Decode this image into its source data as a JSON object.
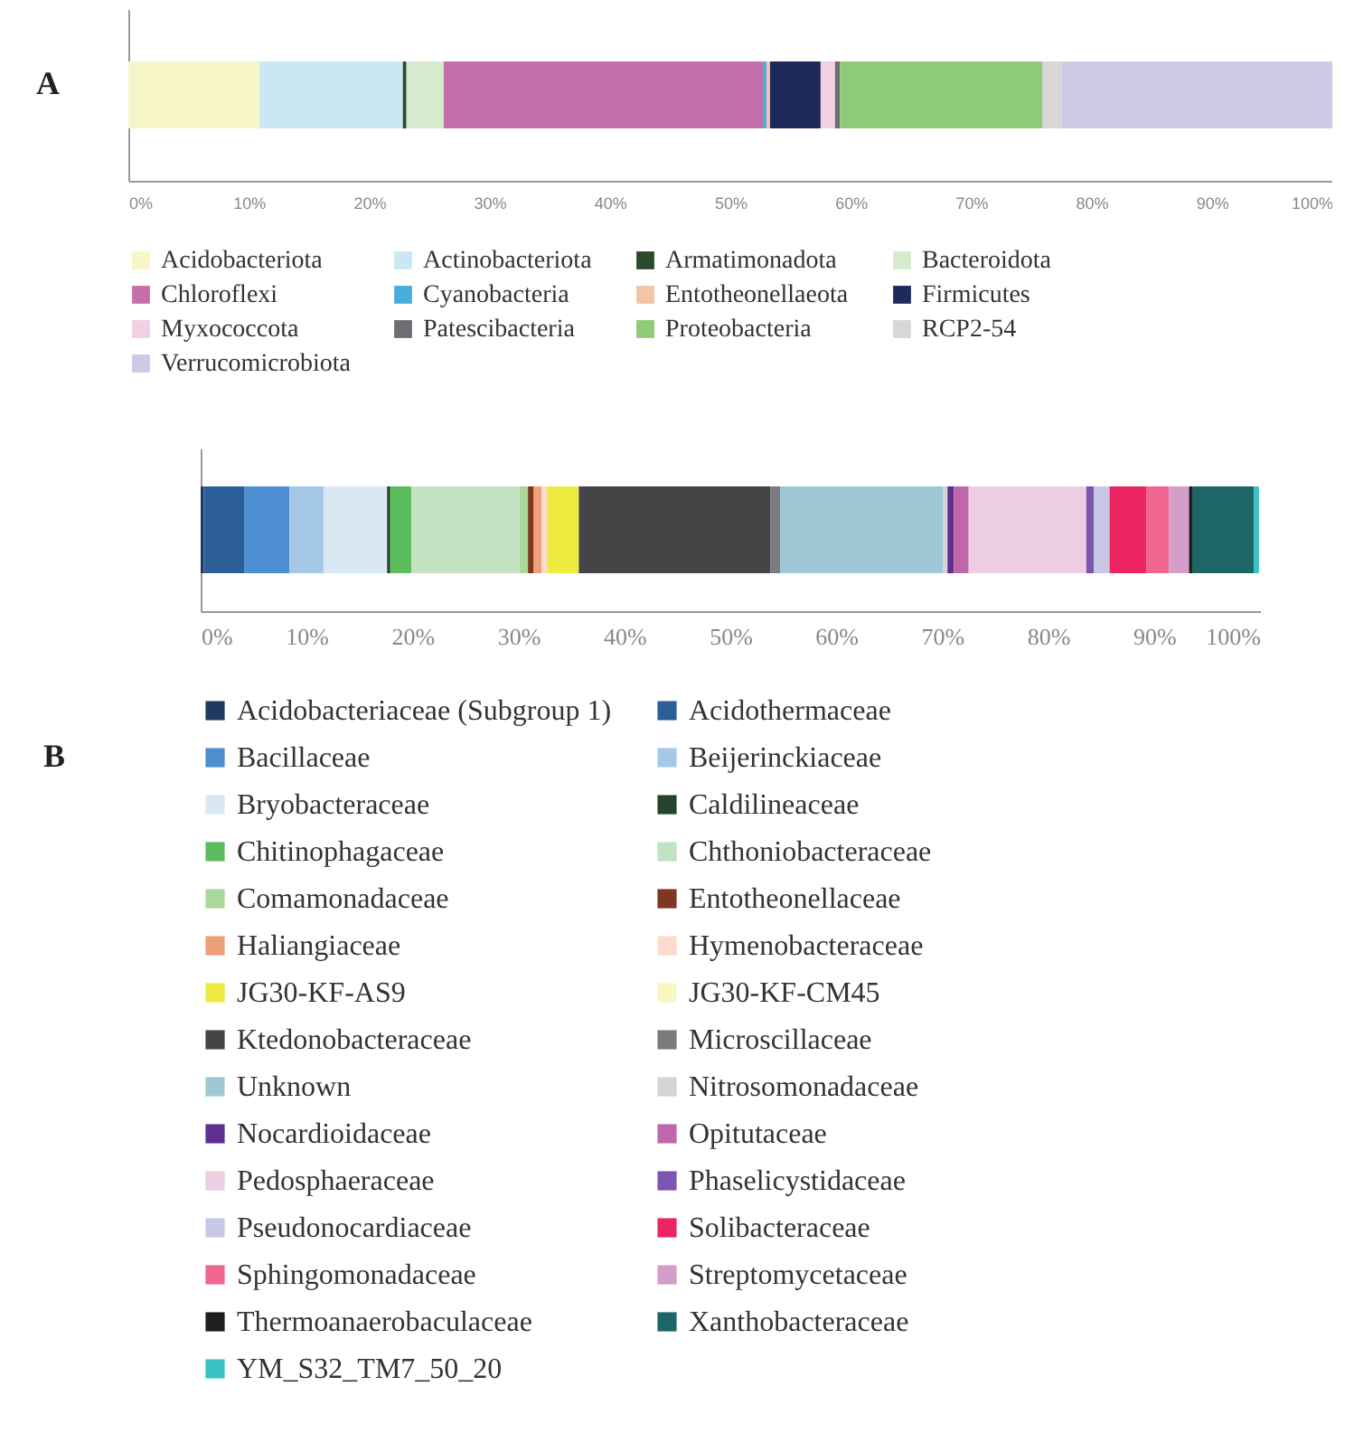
{
  "chart_data": [
    {
      "type": "bar",
      "orientation": "horizontal",
      "stacked": true,
      "categories": [
        null
      ],
      "xlim": [
        0,
        100
      ],
      "xticks": [
        {
          "value": 0,
          "label": "0%"
        },
        {
          "value": 10,
          "label": "10%"
        },
        {
          "value": 20,
          "label": "20%"
        },
        {
          "value": 30,
          "label": "30%"
        },
        {
          "value": 40,
          "label": "40%"
        },
        {
          "value": 50,
          "label": "50%"
        },
        {
          "value": 60,
          "label": "60%"
        },
        {
          "value": 70,
          "label": "70%"
        },
        {
          "value": 80,
          "label": "80%"
        },
        {
          "value": 90,
          "label": "90%"
        },
        {
          "value": 100,
          "label": "100%"
        }
      ],
      "tick_labels": "x",
      "grid": false,
      "legend": "bottom",
      "annotations": [
        "A"
      ],
      "series": [
        {
          "name": "Acidobacteriota",
          "color": "#f7f6c9",
          "values": [
            10.9
          ]
        },
        {
          "name": "Actinobacteriota",
          "color": "#c9e8f4",
          "values": [
            11.9
          ]
        },
        {
          "name": "Armatimonadota",
          "color": "#2b4a2b",
          "values": [
            0.3
          ]
        },
        {
          "name": "Bacteroidota",
          "color": "#d6ebcd",
          "values": [
            3.1
          ]
        },
        {
          "name": "Chloroflexi",
          "color": "#c46faa",
          "values": [
            26.5
          ]
        },
        {
          "name": "Cyanobacteria",
          "color": "#4aaedc",
          "values": [
            0.3
          ]
        },
        {
          "name": "Entotheonellaeota",
          "color": "#f5c3a6",
          "values": [
            0.3
          ]
        },
        {
          "name": "Firmicutes",
          "color": "#1f2a5c",
          "values": [
            4.2
          ]
        },
        {
          "name": "Myxococcota",
          "color": "#f2d0e4",
          "values": [
            1.2
          ]
        },
        {
          "name": "Patescibacteria",
          "color": "#6e6e72",
          "values": [
            0.4
          ]
        },
        {
          "name": "Proteobacteria",
          "color": "#8fca78",
          "values": [
            16.8
          ]
        },
        {
          "name": "RCP2-54",
          "color": "#d7d7d7",
          "values": [
            1.6
          ]
        },
        {
          "name": "Verrucomicrobiota",
          "color": "#cccae4",
          "values": [
            22.5
          ]
        }
      ]
    },
    {
      "type": "bar",
      "orientation": "horizontal",
      "stacked": true,
      "categories": [
        null
      ],
      "xlim": [
        0,
        100
      ],
      "xticks": [
        {
          "value": 0,
          "label": "0%"
        },
        {
          "value": 10,
          "label": "10%"
        },
        {
          "value": 20,
          "label": "20%"
        },
        {
          "value": 30,
          "label": "30%"
        },
        {
          "value": 40,
          "label": "40%"
        },
        {
          "value": 50,
          "label": "50%"
        },
        {
          "value": 60,
          "label": "60%"
        },
        {
          "value": 70,
          "label": "70%"
        },
        {
          "value": 80,
          "label": "80%"
        },
        {
          "value": 90,
          "label": "90%"
        },
        {
          "value": 100,
          "label": "100%"
        }
      ],
      "tick_labels": "x",
      "grid": false,
      "legend": "bottom",
      "annotations": [
        "B"
      ],
      "series": [
        {
          "name": "Acidobacteriaceae (Subgroup 1)",
          "color": "#1f3a60",
          "values": [
            0.3
          ]
        },
        {
          "name": "Acidothermaceae",
          "color": "#2c5f97",
          "values": [
            3.8
          ]
        },
        {
          "name": "Bacillaceae",
          "color": "#4d8fd0",
          "values": [
            4.3
          ]
        },
        {
          "name": "Beijerinckiaceae",
          "color": "#a6c8e8",
          "values": [
            3.2
          ]
        },
        {
          "name": "Bryobacteraceae",
          "color": "#dae8f4",
          "values": [
            6.0
          ]
        },
        {
          "name": "Caldilineaceae",
          "color": "#25452a",
          "values": [
            0.3
          ]
        },
        {
          "name": "Chitinophagaceae",
          "color": "#5cbd5f",
          "values": [
            2.0
          ]
        },
        {
          "name": "Chthoniobacteraceae",
          "color": "#c2e2c2",
          "values": [
            10.2
          ]
        },
        {
          "name": "Comamonadaceae",
          "color": "#a9d89a",
          "values": [
            0.8
          ]
        },
        {
          "name": "Entotheonellaceae",
          "color": "#7c3820",
          "values": [
            0.5
          ]
        },
        {
          "name": "Haliangiaceae",
          "color": "#eea07a",
          "values": [
            0.8
          ]
        },
        {
          "name": "Hymenobacteraceae",
          "color": "#fbdccc",
          "values": [
            0.5
          ]
        },
        {
          "name": "JG30-KF-AS9",
          "color": "#eeea40",
          "values": [
            3.0
          ]
        },
        {
          "name": "JG30-KF-CM45",
          "color": "#f8f6c2",
          "values": [
            null
          ]
        },
        {
          "name": "Ktedonobacteraceae",
          "color": "#454548",
          "values": [
            18.1
          ]
        },
        {
          "name": "Microscillaceae",
          "color": "#7c7c80",
          "values": [
            0.9
          ]
        },
        {
          "name": "Unknown",
          "color": "#9fc8d6",
          "values": [
            15.4
          ]
        },
        {
          "name": "Nitrosomonadaceae",
          "color": "#d4d4d4",
          "values": [
            0.4
          ]
        },
        {
          "name": "Nocardioidaceae",
          "color": "#5e2e90",
          "values": [
            0.6
          ]
        },
        {
          "name": "Opitutaceae",
          "color": "#c067ac",
          "values": [
            1.4
          ]
        },
        {
          "name": "Pedosphaeraceae",
          "color": "#eccde2",
          "values": [
            11.1
          ]
        },
        {
          "name": "Phaselicystidaceae",
          "color": "#7c55b0",
          "values": [
            0.7
          ]
        },
        {
          "name": "Pseudonocardiaceae",
          "color": "#c8c8e6",
          "values": [
            1.5
          ]
        },
        {
          "name": "Solibacteraceae",
          "color": "#ec2562",
          "values": [
            3.5
          ]
        },
        {
          "name": "Sphingomonadaceae",
          "color": "#ef6690",
          "values": [
            2.1
          ]
        },
        {
          "name": "Streptomycetaceae",
          "color": "#d59ec8",
          "values": [
            1.9
          ]
        },
        {
          "name": "Thermoanaerobaculaceae",
          "color": "#1e1e1e",
          "values": [
            0.3
          ]
        },
        {
          "name": "Xanthobacteraceae",
          "color": "#1d6566",
          "values": [
            5.8
          ]
        },
        {
          "name": "YM_S32_TM7_50_20",
          "color": "#39c0c0",
          "values": [
            0.5
          ]
        }
      ]
    }
  ]
}
